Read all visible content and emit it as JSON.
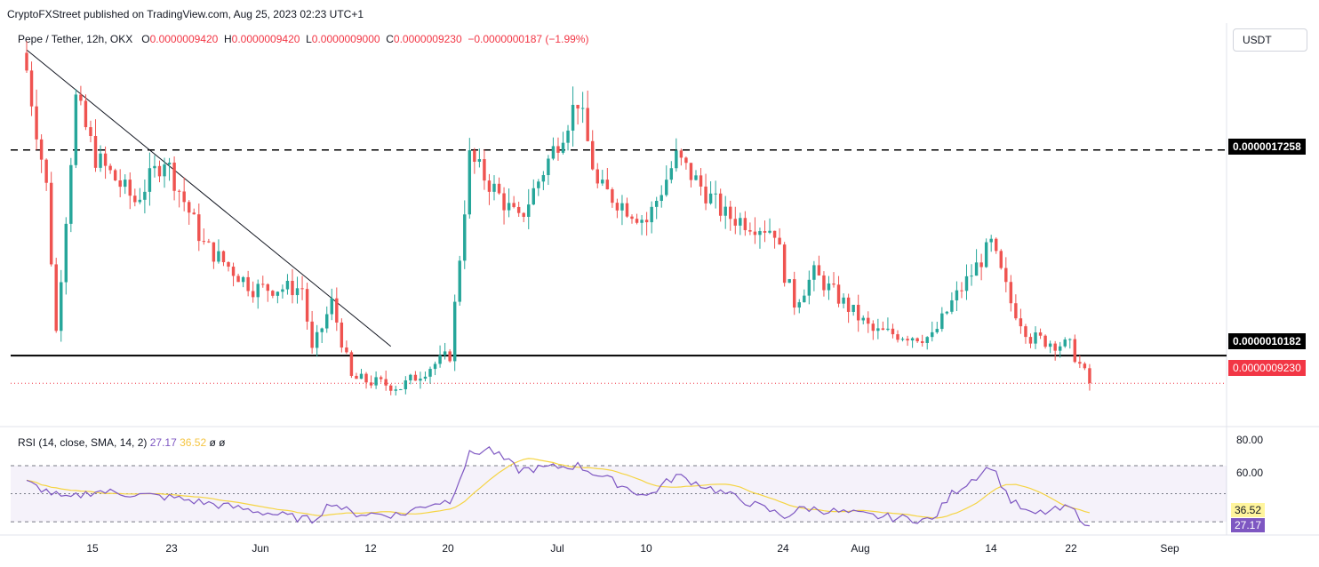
{
  "header": {
    "published": "CryptoFXStreet published on TradingView.com, Aug 25, 2023 02:23 UTC+1"
  },
  "legend": {
    "symbol": "Pepe / Tether, 12h, OKX",
    "open_label": "O",
    "open": "0.0000009420",
    "high_label": "H",
    "high": "0.0000009420",
    "low_label": "L",
    "low": "0.0000009000",
    "close_label": "C",
    "close": "0.0000009230",
    "change": "−0.0000000187 (−1.99%)"
  },
  "currency_button": "USDT",
  "price_levels": {
    "resistance": "0.0000017258",
    "support": "0.0000010182",
    "last": "0.0000009230"
  },
  "rsi": {
    "legend_name": "RSI (14, close, SMA, 14, 2)",
    "value": "27.17",
    "sma": "36.52",
    "extra": "ø  ø",
    "axis_ticks": [
      "80.00",
      "60.00"
    ],
    "current_value_badge": "27.17",
    "current_sma_badge": "36.52"
  },
  "x_axis_ticks": [
    "15",
    "23",
    "Jun",
    "12",
    "20",
    "Jul",
    "10",
    "24",
    "Aug",
    "14",
    "22",
    "Sep"
  ],
  "colors": {
    "up": "#26a69a",
    "down": "#ef5350",
    "rsi_line": "#7e57c2",
    "rsi_sma": "#f5d442",
    "last_price": "#f23645"
  },
  "chart_data": {
    "type": "candlestick",
    "timeframe": "12h",
    "symbol": "PEPE/USDT",
    "y_range": [
      7.8e-07,
      2.15e-06
    ],
    "horizontal_lines": [
      {
        "value": 1.7258e-06,
        "style": "dashed"
      },
      {
        "value": 1.0182e-06,
        "style": "solid"
      },
      {
        "value": 9.23e-07,
        "style": "dotted"
      }
    ],
    "trendline": {
      "from_date": "2023-05-08",
      "from_value": 2.07e-06,
      "to_date": "2023-06-14",
      "to_value": 1.05e-06
    },
    "anchors": [
      {
        "date": "2023-05-08",
        "close": 2e-06
      },
      {
        "date": "2023-05-10",
        "close": 1.6e-06
      },
      {
        "date": "2023-05-11",
        "close": 1.1e-06
      },
      {
        "date": "2023-05-13",
        "close": 1.9e-06
      },
      {
        "date": "2023-05-15",
        "close": 1.7e-06
      },
      {
        "date": "2023-05-19",
        "close": 1.55e-06
      },
      {
        "date": "2023-05-22",
        "close": 1.7e-06
      },
      {
        "date": "2023-05-26",
        "close": 1.4e-06
      },
      {
        "date": "2023-05-31",
        "close": 1.25e-06
      },
      {
        "date": "2023-06-05",
        "close": 1.25e-06
      },
      {
        "date": "2023-06-06",
        "close": 1.03e-06
      },
      {
        "date": "2023-06-08",
        "close": 1.2e-06
      },
      {
        "date": "2023-06-10",
        "close": 9.4e-07
      },
      {
        "date": "2023-06-15",
        "close": 9.1e-07
      },
      {
        "date": "2023-06-18",
        "close": 9.8e-07
      },
      {
        "date": "2023-06-20",
        "close": 1.02e-06
      },
      {
        "date": "2023-06-22",
        "close": 1.7e-06
      },
      {
        "date": "2023-06-27",
        "close": 1.48e-06
      },
      {
        "date": "2023-07-03",
        "close": 1.9e-06
      },
      {
        "date": "2023-07-05",
        "close": 1.6e-06
      },
      {
        "date": "2023-07-10",
        "close": 1.48e-06
      },
      {
        "date": "2023-07-13",
        "close": 1.7e-06
      },
      {
        "date": "2023-07-18",
        "close": 1.5e-06
      },
      {
        "date": "2023-07-23",
        "close": 1.45e-06
      },
      {
        "date": "2023-07-24",
        "close": 1.3e-06
      },
      {
        "date": "2023-07-25",
        "close": 1.2e-06
      },
      {
        "date": "2023-07-27",
        "close": 1.3e-06
      },
      {
        "date": "2023-08-02",
        "close": 1.1e-06
      },
      {
        "date": "2023-08-08",
        "close": 1.08e-06
      },
      {
        "date": "2023-08-10",
        "close": 1.2e-06
      },
      {
        "date": "2023-08-14",
        "close": 1.4e-06
      },
      {
        "date": "2023-08-16",
        "close": 1.2e-06
      },
      {
        "date": "2023-08-18",
        "close": 1.08e-06
      },
      {
        "date": "2023-08-22",
        "close": 1.05e-06
      },
      {
        "date": "2023-08-24",
        "close": 9.23e-07
      }
    ],
    "rsi_series": [
      {
        "date": "2023-05-08",
        "rsi": 58
      },
      {
        "date": "2023-05-12",
        "rsi": 46
      },
      {
        "date": "2023-05-15",
        "rsi": 52
      },
      {
        "date": "2023-05-23",
        "rsi": 47
      },
      {
        "date": "2023-05-31",
        "rsi": 38
      },
      {
        "date": "2023-06-06",
        "rsi": 31
      },
      {
        "date": "2023-06-08",
        "rsi": 44
      },
      {
        "date": "2023-06-10",
        "rsi": 36
      },
      {
        "date": "2023-06-15",
        "rsi": 35
      },
      {
        "date": "2023-06-18",
        "rsi": 43
      },
      {
        "date": "2023-06-20",
        "rsi": 45
      },
      {
        "date": "2023-06-22",
        "rsi": 78
      },
      {
        "date": "2023-06-24",
        "rsi": 82
      },
      {
        "date": "2023-06-27",
        "rsi": 67
      },
      {
        "date": "2023-07-03",
        "rsi": 70
      },
      {
        "date": "2023-07-10",
        "rsi": 48
      },
      {
        "date": "2023-07-13",
        "rsi": 63
      },
      {
        "date": "2023-07-18",
        "rsi": 50
      },
      {
        "date": "2023-07-24",
        "rsi": 34
      },
      {
        "date": "2023-07-26",
        "rsi": 40
      },
      {
        "date": "2023-08-02",
        "rsi": 34
      },
      {
        "date": "2023-08-08",
        "rsi": 31
      },
      {
        "date": "2023-08-10",
        "rsi": 50
      },
      {
        "date": "2023-08-14",
        "rsi": 70
      },
      {
        "date": "2023-08-16",
        "rsi": 45
      },
      {
        "date": "2023-08-18",
        "rsi": 35
      },
      {
        "date": "2023-08-22",
        "rsi": 40
      },
      {
        "date": "2023-08-24",
        "rsi": 27.17
      }
    ],
    "rsi_sma_last": 36.52,
    "rsi_levels": [
      70,
      50,
      30
    ],
    "rsi_y_range": [
      25,
      82
    ]
  }
}
